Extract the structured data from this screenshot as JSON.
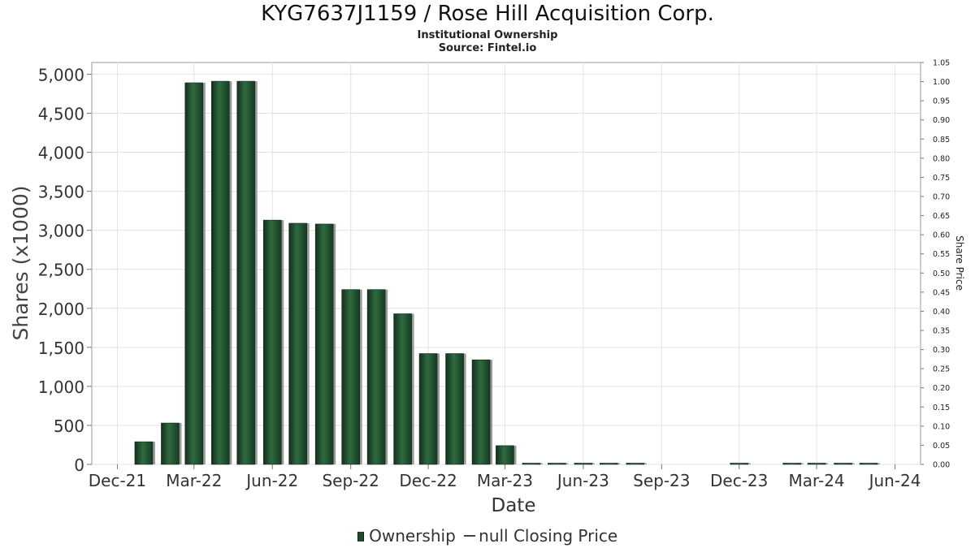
{
  "header": {
    "title": "KYG7637J1159 / Rose Hill Acquisition Corp.",
    "subtitle": "Institutional Ownership",
    "source": "Source: Fintel.io"
  },
  "legend": {
    "ownership_label": "Ownership",
    "price_label": "null Closing Price"
  },
  "chart_data": {
    "type": "bar",
    "title": "KYG7637J1159 / Rose Hill Acquisition Corp.",
    "xlabel": "Date",
    "ylabel": "Shares (x1000)",
    "y2label": "Share Price",
    "ylim": [
      0,
      5150
    ],
    "y2lim": [
      0,
      1.05
    ],
    "yticks": [
      0,
      500,
      1000,
      1500,
      2000,
      2500,
      3000,
      3500,
      4000,
      4500,
      5000
    ],
    "ytick_labels": [
      "0",
      "500",
      "1,000",
      "1,500",
      "2,000",
      "2,500",
      "3,000",
      "3,500",
      "4,000",
      "4,500",
      "5,000"
    ],
    "y2ticks": [
      "0.00",
      "0.05",
      "0.10",
      "0.15",
      "0.20",
      "0.25",
      "0.30",
      "0.35",
      "0.40",
      "0.45",
      "0.50",
      "0.55",
      "0.60",
      "0.65",
      "0.70",
      "0.75",
      "0.80",
      "0.85",
      "0.90",
      "0.95",
      "1.00",
      "1.05"
    ],
    "xlim": [
      "2021-11-01",
      "2024-07-01"
    ],
    "xticks": [
      {
        "date": "2021-12-01",
        "label": "Dec-21"
      },
      {
        "date": "2022-03-01",
        "label": "Mar-22"
      },
      {
        "date": "2022-06-01",
        "label": "Jun-22"
      },
      {
        "date": "2022-09-01",
        "label": "Sep-22"
      },
      {
        "date": "2022-12-01",
        "label": "Dec-22"
      },
      {
        "date": "2023-03-01",
        "label": "Mar-23"
      },
      {
        "date": "2023-06-01",
        "label": "Jun-23"
      },
      {
        "date": "2023-09-01",
        "label": "Sep-23"
      },
      {
        "date": "2023-12-01",
        "label": "Dec-23"
      },
      {
        "date": "2024-03-01",
        "label": "Mar-24"
      },
      {
        "date": "2024-06-01",
        "label": "Jun-24"
      }
    ],
    "grid": true,
    "legend_position": "bottom-center",
    "series": [
      {
        "name": "Ownership",
        "color": "#1e4a2c",
        "points": [
          {
            "date": "2022-01-01",
            "value": 290
          },
          {
            "date": "2022-02-01",
            "value": 530
          },
          {
            "date": "2022-03-01",
            "value": 4890
          },
          {
            "date": "2022-04-01",
            "value": 4910
          },
          {
            "date": "2022-05-01",
            "value": 4910
          },
          {
            "date": "2022-06-01",
            "value": 3130
          },
          {
            "date": "2022-07-01",
            "value": 3090
          },
          {
            "date": "2022-08-01",
            "value": 3080
          },
          {
            "date": "2022-09-01",
            "value": 2240
          },
          {
            "date": "2022-10-01",
            "value": 2240
          },
          {
            "date": "2022-11-01",
            "value": 1930
          },
          {
            "date": "2022-12-01",
            "value": 1420
          },
          {
            "date": "2023-01-01",
            "value": 1420
          },
          {
            "date": "2023-02-01",
            "value": 1340
          },
          {
            "date": "2023-03-01",
            "value": 240
          },
          {
            "date": "2023-04-01",
            "value": 12
          },
          {
            "date": "2023-05-01",
            "value": 12
          },
          {
            "date": "2023-06-01",
            "value": 12
          },
          {
            "date": "2023-07-01",
            "value": 12
          },
          {
            "date": "2023-08-01",
            "value": 12
          },
          {
            "date": "2023-12-01",
            "value": 8
          },
          {
            "date": "2024-02-01",
            "value": 8
          },
          {
            "date": "2024-03-01",
            "value": 8
          },
          {
            "date": "2024-04-01",
            "value": 8
          },
          {
            "date": "2024-05-01",
            "value": 8
          }
        ]
      }
    ]
  }
}
